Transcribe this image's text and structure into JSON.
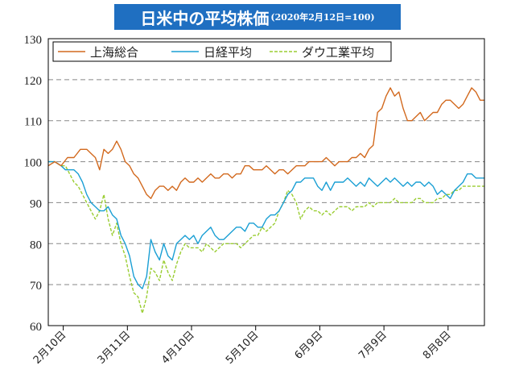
{
  "title": {
    "main": "日米中の平均株価",
    "sub": "(2020年2月12日=100)"
  },
  "chart_data": {
    "type": "line",
    "ylim": [
      60,
      130
    ],
    "yticks": [
      "60",
      "70",
      "80",
      "90",
      "100",
      "110",
      "120",
      "130"
    ],
    "xticks": [
      "2月10日",
      "3月11日",
      "4月10日",
      "5月10日",
      "6月9日",
      "7月9日",
      "8月8日"
    ],
    "xtick_days": [
      0,
      30,
      60,
      90,
      120,
      150,
      180
    ],
    "x_range_days": [
      -7,
      197
    ],
    "grid": "horizontal-dashed",
    "legend": "top-left",
    "series": [
      {
        "name": "上海総合",
        "color": "#d2691e",
        "style": "solid",
        "points": [
          [
            -7,
            99
          ],
          [
            -4,
            100
          ],
          [
            -1,
            99
          ],
          [
            2,
            101
          ],
          [
            5,
            101
          ],
          [
            8,
            103
          ],
          [
            11,
            103
          ],
          [
            13,
            102
          ],
          [
            15,
            101
          ],
          [
            17,
            98
          ],
          [
            19,
            103
          ],
          [
            21,
            102
          ],
          [
            23,
            103
          ],
          [
            25,
            105
          ],
          [
            27,
            103
          ],
          [
            29,
            100
          ],
          [
            31,
            99
          ],
          [
            33,
            97
          ],
          [
            35,
            96
          ],
          [
            37,
            94
          ],
          [
            39,
            92
          ],
          [
            41,
            91
          ],
          [
            43,
            93
          ],
          [
            45,
            94
          ],
          [
            47,
            94
          ],
          [
            49,
            93
          ],
          [
            51,
            94
          ],
          [
            53,
            93
          ],
          [
            55,
            95
          ],
          [
            57,
            96
          ],
          [
            59,
            95
          ],
          [
            61,
            95
          ],
          [
            63,
            96
          ],
          [
            65,
            95
          ],
          [
            67,
            96
          ],
          [
            69,
            97
          ],
          [
            71,
            96
          ],
          [
            73,
            96
          ],
          [
            75,
            97
          ],
          [
            77,
            97
          ],
          [
            79,
            96
          ],
          [
            81,
            97
          ],
          [
            83,
            97
          ],
          [
            85,
            99
          ],
          [
            87,
            99
          ],
          [
            89,
            98
          ],
          [
            91,
            98
          ],
          [
            93,
            98
          ],
          [
            95,
            99
          ],
          [
            97,
            98
          ],
          [
            99,
            97
          ],
          [
            101,
            98
          ],
          [
            103,
            98
          ],
          [
            105,
            97
          ],
          [
            107,
            98
          ],
          [
            109,
            99
          ],
          [
            111,
            99
          ],
          [
            113,
            99
          ],
          [
            115,
            100
          ],
          [
            117,
            100
          ],
          [
            119,
            100
          ],
          [
            121,
            100
          ],
          [
            123,
            101
          ],
          [
            125,
            100
          ],
          [
            127,
            99
          ],
          [
            129,
            100
          ],
          [
            131,
            100
          ],
          [
            133,
            100
          ],
          [
            135,
            101
          ],
          [
            137,
            101
          ],
          [
            139,
            102
          ],
          [
            141,
            101
          ],
          [
            143,
            103
          ],
          [
            145,
            104
          ],
          [
            147,
            112
          ],
          [
            149,
            113
          ],
          [
            151,
            116
          ],
          [
            153,
            118
          ],
          [
            155,
            116
          ],
          [
            157,
            117
          ],
          [
            159,
            113
          ],
          [
            161,
            110
          ],
          [
            163,
            110
          ],
          [
            165,
            111
          ],
          [
            167,
            112
          ],
          [
            169,
            110
          ],
          [
            171,
            111
          ],
          [
            173,
            112
          ],
          [
            175,
            112
          ],
          [
            177,
            114
          ],
          [
            179,
            115
          ],
          [
            181,
            115
          ],
          [
            183,
            114
          ],
          [
            185,
            113
          ],
          [
            187,
            114
          ],
          [
            189,
            116
          ],
          [
            191,
            118
          ],
          [
            193,
            117
          ],
          [
            195,
            115
          ],
          [
            197,
            115
          ]
        ]
      },
      {
        "name": "日経平均",
        "color": "#1a9fd4",
        "style": "solid",
        "points": [
          [
            -7,
            100
          ],
          [
            -4,
            100
          ],
          [
            -1,
            99
          ],
          [
            1,
            98
          ],
          [
            3,
            98
          ],
          [
            5,
            98
          ],
          [
            7,
            97
          ],
          [
            9,
            95
          ],
          [
            11,
            92
          ],
          [
            13,
            90
          ],
          [
            15,
            89
          ],
          [
            17,
            88
          ],
          [
            19,
            88
          ],
          [
            21,
            89
          ],
          [
            23,
            87
          ],
          [
            25,
            86
          ],
          [
            27,
            82
          ],
          [
            29,
            80
          ],
          [
            31,
            77
          ],
          [
            33,
            72
          ],
          [
            35,
            70
          ],
          [
            37,
            69
          ],
          [
            39,
            72
          ],
          [
            41,
            81
          ],
          [
            43,
            78
          ],
          [
            45,
            76
          ],
          [
            47,
            80
          ],
          [
            49,
            77
          ],
          [
            51,
            76
          ],
          [
            53,
            80
          ],
          [
            55,
            81
          ],
          [
            57,
            82
          ],
          [
            59,
            81
          ],
          [
            61,
            82
          ],
          [
            63,
            80
          ],
          [
            65,
            82
          ],
          [
            67,
            83
          ],
          [
            69,
            84
          ],
          [
            71,
            82
          ],
          [
            73,
            81
          ],
          [
            75,
            81
          ],
          [
            77,
            82
          ],
          [
            79,
            83
          ],
          [
            81,
            84
          ],
          [
            83,
            84
          ],
          [
            85,
            83
          ],
          [
            87,
            85
          ],
          [
            89,
            85
          ],
          [
            91,
            84
          ],
          [
            93,
            84
          ],
          [
            95,
            86
          ],
          [
            97,
            87
          ],
          [
            99,
            87
          ],
          [
            101,
            88
          ],
          [
            103,
            90
          ],
          [
            105,
            92
          ],
          [
            107,
            93
          ],
          [
            109,
            95
          ],
          [
            111,
            95
          ],
          [
            113,
            96
          ],
          [
            115,
            96
          ],
          [
            117,
            96
          ],
          [
            119,
            94
          ],
          [
            121,
            93
          ],
          [
            123,
            95
          ],
          [
            125,
            93
          ],
          [
            127,
            95
          ],
          [
            129,
            95
          ],
          [
            131,
            95
          ],
          [
            133,
            96
          ],
          [
            135,
            95
          ],
          [
            137,
            94
          ],
          [
            139,
            95
          ],
          [
            141,
            94
          ],
          [
            143,
            96
          ],
          [
            145,
            95
          ],
          [
            147,
            94
          ],
          [
            149,
            95
          ],
          [
            151,
            96
          ],
          [
            153,
            95
          ],
          [
            155,
            96
          ],
          [
            157,
            95
          ],
          [
            159,
            94
          ],
          [
            161,
            95
          ],
          [
            163,
            94
          ],
          [
            165,
            95
          ],
          [
            167,
            95
          ],
          [
            169,
            94
          ],
          [
            171,
            95
          ],
          [
            173,
            94
          ],
          [
            175,
            92
          ],
          [
            177,
            93
          ],
          [
            179,
            92
          ],
          [
            181,
            91
          ],
          [
            183,
            93
          ],
          [
            185,
            94
          ],
          [
            187,
            95
          ],
          [
            189,
            97
          ],
          [
            191,
            97
          ],
          [
            193,
            96
          ],
          [
            195,
            96
          ],
          [
            197,
            96
          ]
        ]
      },
      {
        "name": "ダウ工業平均",
        "color": "#9acd32",
        "style": "dashed",
        "points": [
          [
            -7,
            100
          ],
          [
            -4,
            100
          ],
          [
            -1,
            99
          ],
          [
            1,
            99
          ],
          [
            3,
            97
          ],
          [
            5,
            95
          ],
          [
            7,
            94
          ],
          [
            9,
            92
          ],
          [
            11,
            90
          ],
          [
            13,
            88
          ],
          [
            15,
            86
          ],
          [
            17,
            88
          ],
          [
            19,
            92
          ],
          [
            21,
            86
          ],
          [
            23,
            82
          ],
          [
            25,
            85
          ],
          [
            27,
            80
          ],
          [
            29,
            77
          ],
          [
            31,
            72
          ],
          [
            33,
            68
          ],
          [
            35,
            67
          ],
          [
            37,
            63
          ],
          [
            39,
            67
          ],
          [
            41,
            74
          ],
          [
            43,
            73
          ],
          [
            45,
            71
          ],
          [
            47,
            76
          ],
          [
            49,
            73
          ],
          [
            51,
            71
          ],
          [
            53,
            75
          ],
          [
            55,
            78
          ],
          [
            57,
            80
          ],
          [
            59,
            79
          ],
          [
            61,
            79
          ],
          [
            63,
            79
          ],
          [
            65,
            78
          ],
          [
            67,
            80
          ],
          [
            69,
            79
          ],
          [
            71,
            78
          ],
          [
            73,
            79
          ],
          [
            75,
            80
          ],
          [
            77,
            80
          ],
          [
            79,
            80
          ],
          [
            81,
            80
          ],
          [
            83,
            79
          ],
          [
            85,
            80
          ],
          [
            87,
            81
          ],
          [
            89,
            82
          ],
          [
            91,
            82
          ],
          [
            93,
            84
          ],
          [
            95,
            83
          ],
          [
            97,
            84
          ],
          [
            99,
            85
          ],
          [
            101,
            88
          ],
          [
            103,
            90
          ],
          [
            105,
            93
          ],
          [
            107,
            92
          ],
          [
            109,
            90
          ],
          [
            111,
            86
          ],
          [
            113,
            88
          ],
          [
            115,
            89
          ],
          [
            117,
            88
          ],
          [
            119,
            88
          ],
          [
            121,
            87
          ],
          [
            123,
            88
          ],
          [
            125,
            87
          ],
          [
            127,
            88
          ],
          [
            129,
            89
          ],
          [
            131,
            89
          ],
          [
            133,
            89
          ],
          [
            135,
            88
          ],
          [
            137,
            89
          ],
          [
            139,
            89
          ],
          [
            141,
            89
          ],
          [
            143,
            90
          ],
          [
            145,
            89
          ],
          [
            147,
            90
          ],
          [
            149,
            90
          ],
          [
            151,
            90
          ],
          [
            153,
            90
          ],
          [
            155,
            91
          ],
          [
            157,
            90
          ],
          [
            159,
            90
          ],
          [
            161,
            90
          ],
          [
            163,
            90
          ],
          [
            165,
            91
          ],
          [
            167,
            91
          ],
          [
            169,
            90
          ],
          [
            171,
            90
          ],
          [
            173,
            90
          ],
          [
            175,
            91
          ],
          [
            177,
            91
          ],
          [
            179,
            92
          ],
          [
            181,
            92
          ],
          [
            183,
            93
          ],
          [
            185,
            93
          ],
          [
            187,
            94
          ],
          [
            189,
            94
          ],
          [
            191,
            94
          ],
          [
            193,
            94
          ],
          [
            195,
            94
          ],
          [
            197,
            94
          ]
        ]
      }
    ]
  }
}
